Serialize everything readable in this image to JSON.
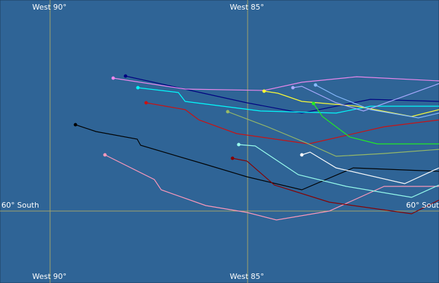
{
  "map": {
    "meridians": [
      {
        "label": "West 90°"
      },
      {
        "label": "West 85°"
      }
    ],
    "parallels": [
      {
        "label": "60° South"
      }
    ]
  }
}
